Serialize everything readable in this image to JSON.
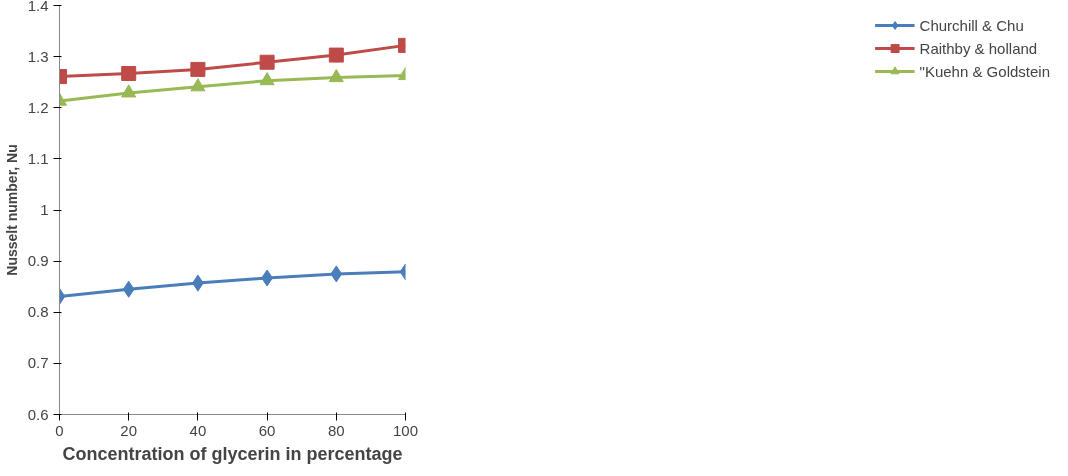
{
  "chart_data": {
    "type": "line",
    "xlabel": "Concentration of glycerin in percentage",
    "ylabel": "Nusselt number, Nu",
    "x": [
      0,
      20,
      40,
      60,
      80,
      100
    ],
    "xlim": [
      0,
      100
    ],
    "xticks": [
      0,
      20,
      40,
      60,
      80,
      100
    ],
    "ylim": [
      0.6,
      1.4
    ],
    "yticks": [
      0.6,
      0.7,
      0.8,
      0.9,
      1,
      1.1,
      1.2,
      1.3,
      1.4
    ],
    "grid": false,
    "legend": "right",
    "series": [
      {
        "name": "Churchill & Chu",
        "color": "#4a7ebb",
        "marker": "diamond",
        "values": [
          0.831,
          0.845,
          0.857,
          0.867,
          0.875,
          0.879
        ]
      },
      {
        "name": "Raithby & holland",
        "color": "#be4b48",
        "marker": "square",
        "values": [
          1.261,
          1.267,
          1.275,
          1.289,
          1.303,
          1.322
        ]
      },
      {
        "name": "\"Kuehn & Goldstein",
        "color": "#98b954",
        "marker": "triangle",
        "values": [
          1.213,
          1.229,
          1.241,
          1.253,
          1.259,
          1.263
        ]
      }
    ]
  }
}
